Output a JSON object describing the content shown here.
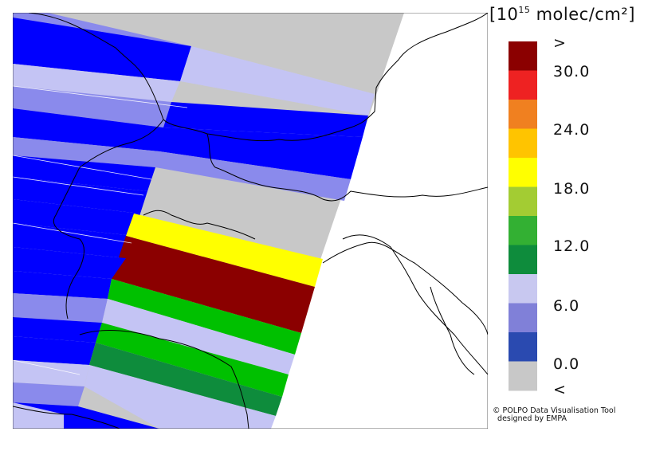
{
  "legend": {
    "unit_prefix": "[10",
    "unit_exp": "15",
    "unit_suffix": " molec/cm²]",
    "labels": [
      ">",
      "30.0",
      "24.0",
      "18.0",
      "12.0",
      "6.0",
      "0.0",
      "<"
    ],
    "bins": [
      {
        "color": "#8b0000"
      },
      {
        "color": "#ee2222"
      },
      {
        "color": "#f08020"
      },
      {
        "color": "#ffc400"
      },
      {
        "color": "#ffff00"
      },
      {
        "color": "#a3cc33"
      },
      {
        "color": "#33b033"
      },
      {
        "color": "#0e8c3c"
      },
      {
        "color": "#c8c8f0"
      },
      {
        "color": "#8080d8"
      },
      {
        "color": "#2a4ab0"
      },
      {
        "color": "#c8c8c8"
      }
    ]
  },
  "credit": {
    "line1": "© POLPO Data Visualisation Tool",
    "line2": "designed by EMPA"
  },
  "swath_colors": {
    "blue": "#0000ff",
    "light_blue": "#8a8aec",
    "pale": "#c4c4f4",
    "grey": "#c8c8c8",
    "yellow": "#ffff00",
    "dark_red": "#8b0000",
    "green": "#00c000",
    "dark_green": "#0e8c3c"
  }
}
